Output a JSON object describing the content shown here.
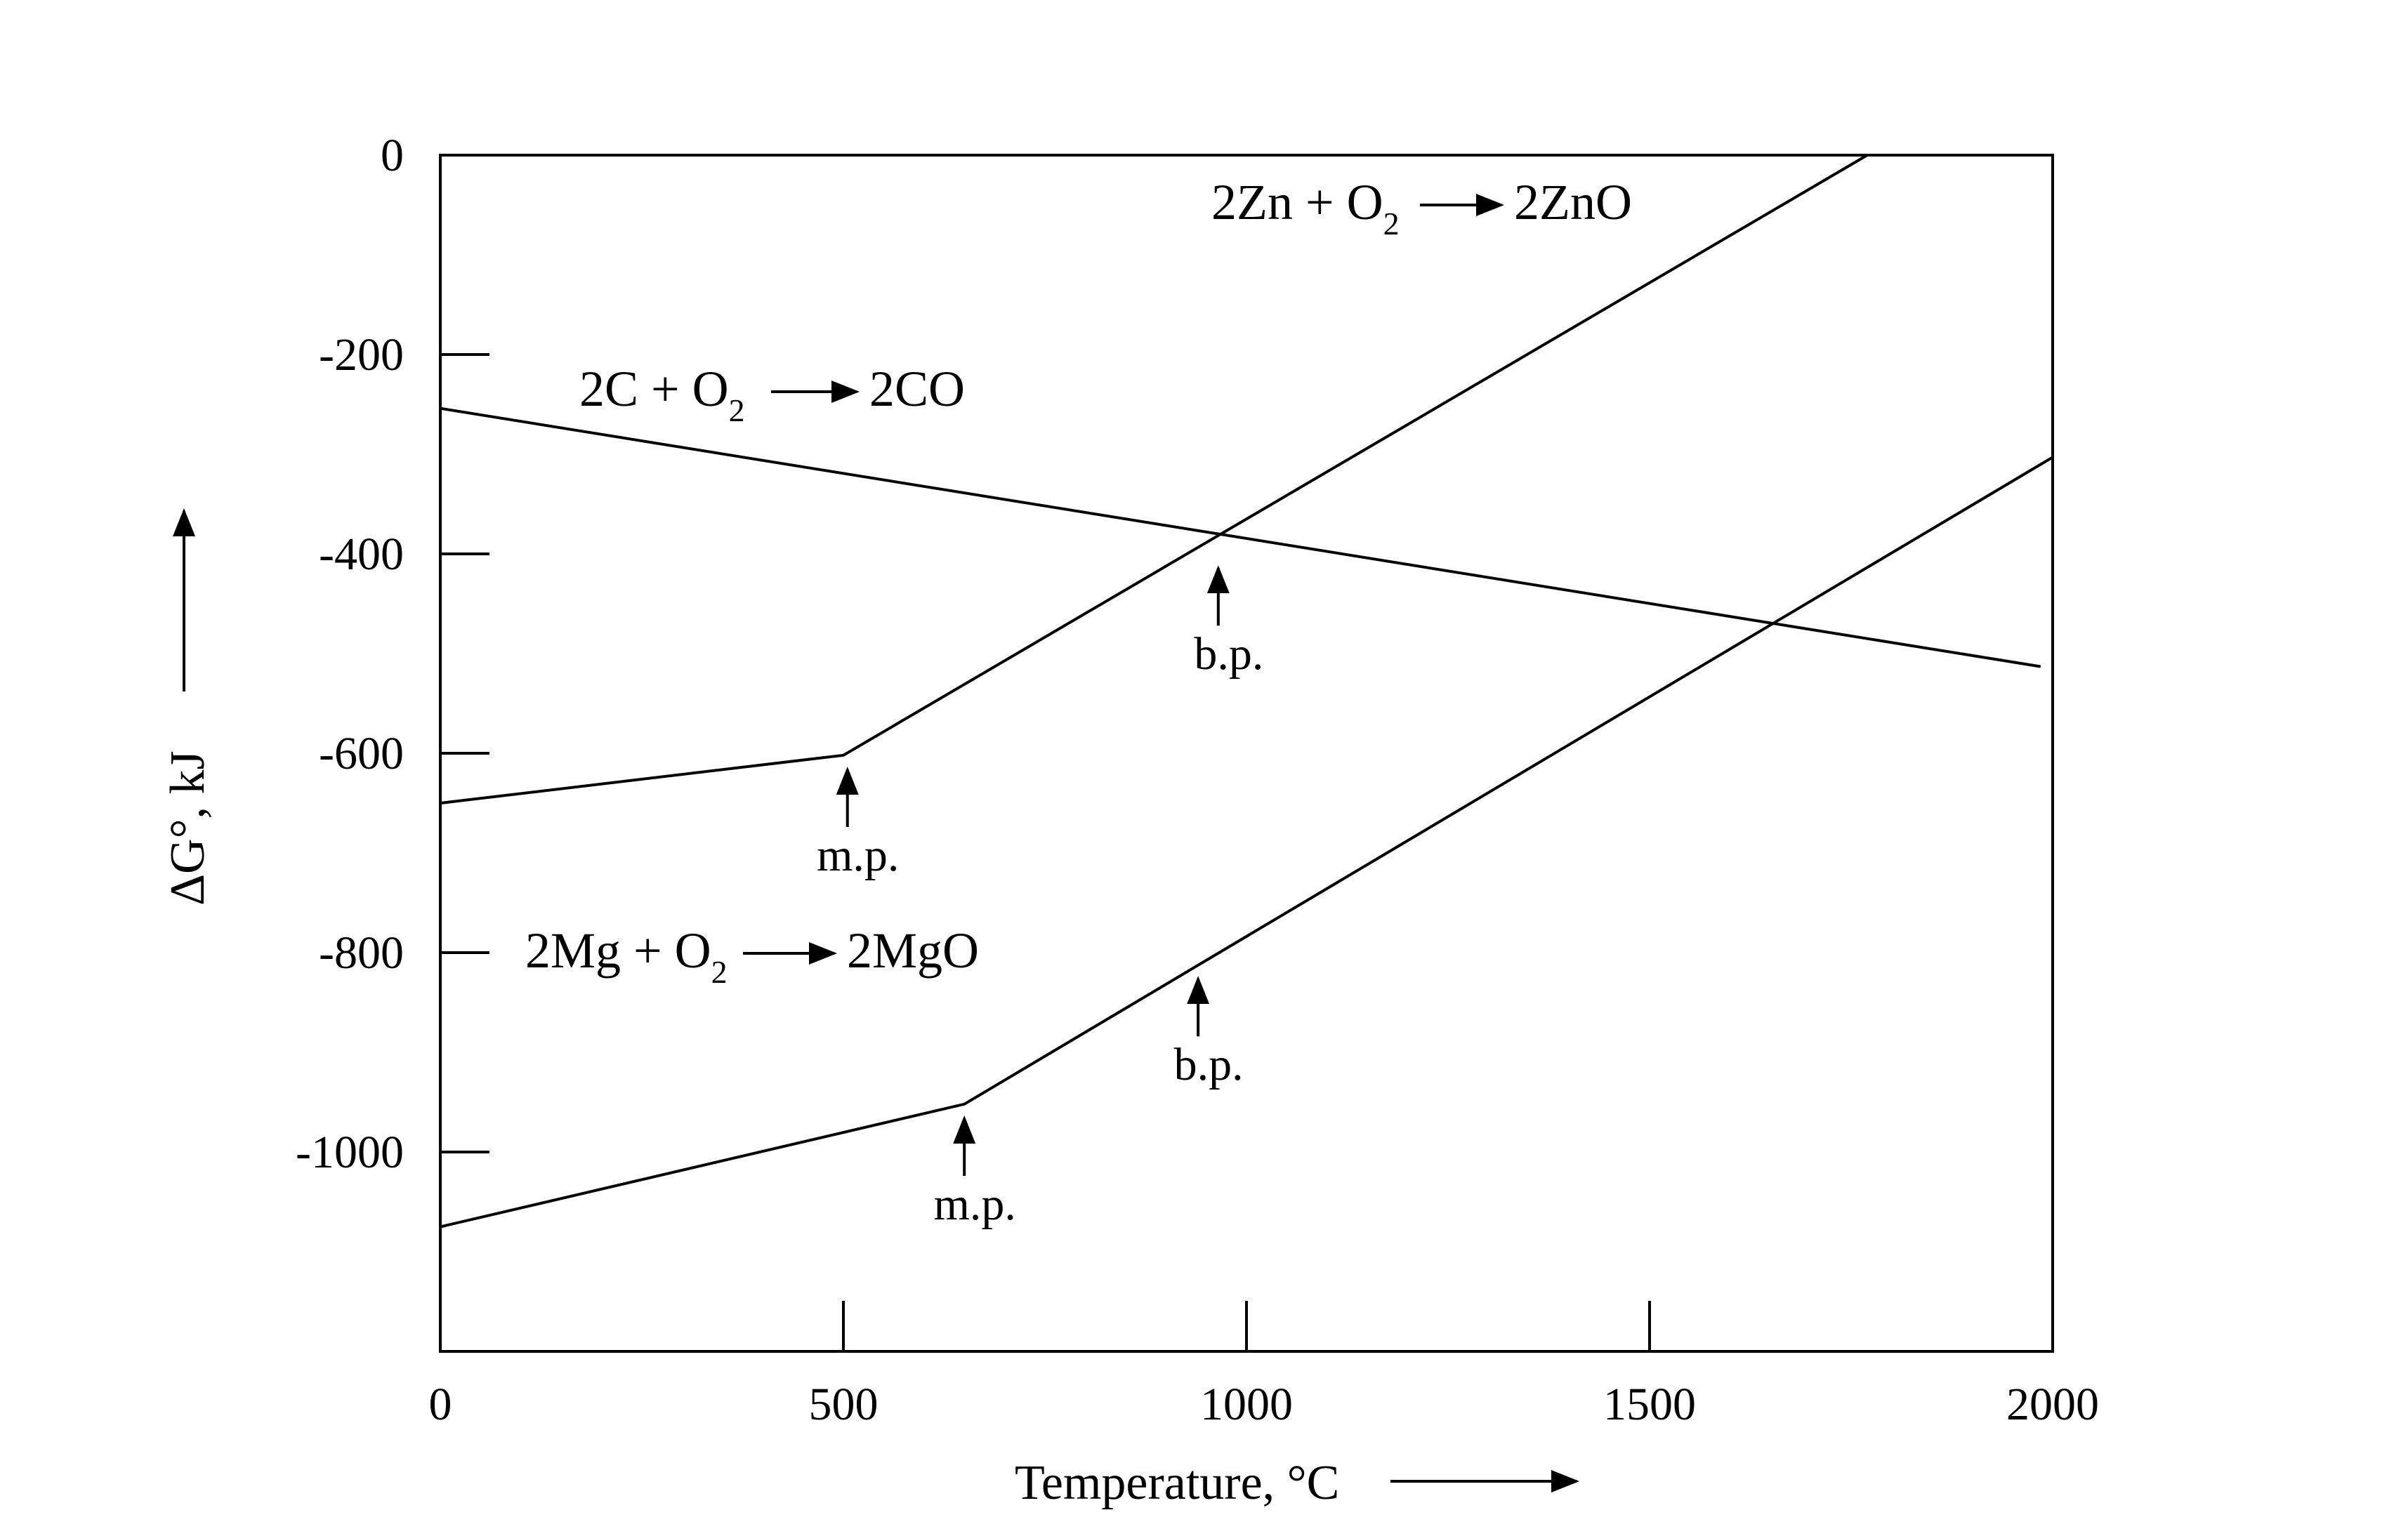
{
  "chart_data": {
    "type": "line",
    "xlabel": "Temperature, °C",
    "ylabel": "ΔG°, kJ",
    "xlim": [
      0,
      2000
    ],
    "ylim": [
      -1200,
      0
    ],
    "x_ticks": [
      0,
      500,
      1000,
      1500,
      2000
    ],
    "y_ticks": [
      0,
      -200,
      -400,
      -600,
      -800,
      -1000
    ],
    "x_tick_labels": [
      "0",
      "500",
      "1000",
      "1500",
      "2000"
    ],
    "y_tick_labels": [
      "0",
      "-200",
      "-400",
      "-600",
      "-800",
      "-1000"
    ],
    "grid": false,
    "series": [
      {
        "name": "2C + O2 → 2CO",
        "label_parts": {
          "pre": "2C + O",
          "sub": "2",
          "post": "2CO"
        },
        "x": [
          0,
          1985
        ],
        "y": [
          -254,
          -513
        ]
      },
      {
        "name": "2Zn + O2 → 2ZnO",
        "label_parts": {
          "pre": "2Zn + O",
          "sub": "2",
          "post": "2ZnO"
        },
        "x": [
          0,
          500,
          1770
        ],
        "y": [
          -650,
          -602,
          0
        ]
      },
      {
        "name": "2Mg + O2 → 2MgO",
        "label_parts": {
          "pre": "2Mg + O",
          "sub": "2",
          "post": "2MgO"
        },
        "x": [
          0,
          650,
          2000
        ],
        "y": [
          -1075,
          -952,
          -303
        ]
      }
    ],
    "annotations": [
      {
        "text": "b.p.",
        "x": 965,
        "y": -410,
        "series": "2Zn + O2 → 2ZnO"
      },
      {
        "text": "m.p.",
        "x": 505,
        "y": -612,
        "series": "2Zn + O2 → 2ZnO"
      },
      {
        "text": "b.p.",
        "x": 940,
        "y": -822,
        "series": "2Mg + O2 → 2MgO"
      },
      {
        "text": "m.p.",
        "x": 650,
        "y": -962,
        "series": "2Mg + O2 → 2MgO"
      }
    ]
  }
}
